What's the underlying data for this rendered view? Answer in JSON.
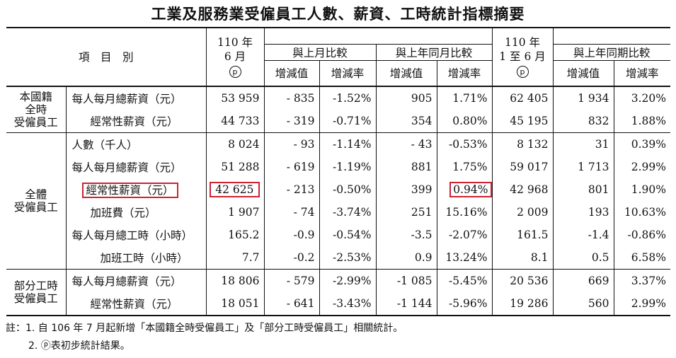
{
  "title": "工業及服務業受僱員工人數、薪資、工時統計指標摘要",
  "header": {
    "item_col": "項　目　別",
    "period1_line1": "110 年",
    "period1_line2": "6 月",
    "prelim_symbol": "p",
    "vs_prev_month": "與上月比較",
    "vs_same_month_last_year": "與上年同月比較",
    "period2_line1": "110 年",
    "period2_line2": "1 至 6 月",
    "vs_same_period_last_year": "與上年同期比較",
    "change_value": "增減值",
    "change_rate": "增減率"
  },
  "groups": [
    {
      "label_lines": [
        "本國籍",
        "全時",
        "受僱員工"
      ],
      "rows": [
        {
          "item": "每人每月總薪資（元）",
          "v1": "53 959",
          "d1": "- 835",
          "r1": "-1.52%",
          "d2": "905",
          "r2": "1.71%",
          "v2": "62 405",
          "d3": "1 934",
          "r3": "3.20%"
        },
        {
          "item": "經常性薪資（元）",
          "v1": "44 733",
          "d1": "- 319",
          "r1": "-0.71%",
          "d2": "354",
          "r2": "0.80%",
          "v2": "45 195",
          "d3": "832",
          "r3": "1.88%"
        }
      ]
    },
    {
      "label_lines": [
        "全體",
        "受僱員工"
      ],
      "rows": [
        {
          "item": "人數（千人）",
          "v1": "8 024",
          "d1": "- 93",
          "r1": "-1.14%",
          "d2": "- 43",
          "r2": "-0.53%",
          "v2": "8 132",
          "d3": "31",
          "r3": "0.39%"
        },
        {
          "item": "每人每月總薪資（元）",
          "v1": "51 288",
          "d1": "- 619",
          "r1": "-1.19%",
          "d2": "881",
          "r2": "1.75%",
          "v2": "59 017",
          "d3": "1 713",
          "r3": "2.99%"
        },
        {
          "item": "經常性薪資（元）",
          "v1": "42 625",
          "d1": "- 213",
          "r1": "-0.50%",
          "d2": "399",
          "r2": "0.94%",
          "v2": "42 968",
          "d3": "801",
          "r3": "1.90%"
        },
        {
          "item": "加班費（元）",
          "v1": "1 907",
          "d1": "- 74",
          "r1": "-3.74%",
          "d2": "251",
          "r2": "15.16%",
          "v2": "2 009",
          "d3": "193",
          "r3": "10.63%"
        },
        {
          "item": "每人每月總工時（小時）",
          "v1": "165.2",
          "d1": "-0.9",
          "r1": "-0.54%",
          "d2": "-3.5",
          "r2": "-2.07%",
          "v2": "161.5",
          "d3": "-1.4",
          "r3": "-0.86%"
        },
        {
          "item": "加班工時（小時）",
          "v1": "7.7",
          "d1": "-0.2",
          "r1": "-2.53%",
          "d2": "0.9",
          "r2": "13.24%",
          "v2": "8.1",
          "d3": "0.5",
          "r3": "6.58%"
        }
      ]
    },
    {
      "label_lines": [
        "部分工時",
        "受僱員工"
      ],
      "rows": [
        {
          "item": "每人每月總薪資（元）",
          "v1": "18 806",
          "d1": "- 579",
          "r1": "-2.99%",
          "d2": "-1 085",
          "r2": "-5.45%",
          "v2": "20 536",
          "d3": "669",
          "r3": "3.37%"
        },
        {
          "item": "經常性薪資（元）",
          "v1": "18 051",
          "d1": "- 641",
          "r1": "-3.43%",
          "d2": "-1 144",
          "r2": "-5.96%",
          "v2": "19 286",
          "d3": "560",
          "r3": "2.99%"
        }
      ]
    }
  ],
  "highlight_color": "#cc2233",
  "notes": [
    "註：1. 自 106 年 7 月起新增「本國籍全時受僱員工」及「部分工時受僱員工」相關統計。",
    "2. ⓟ表初步統計結果。"
  ]
}
